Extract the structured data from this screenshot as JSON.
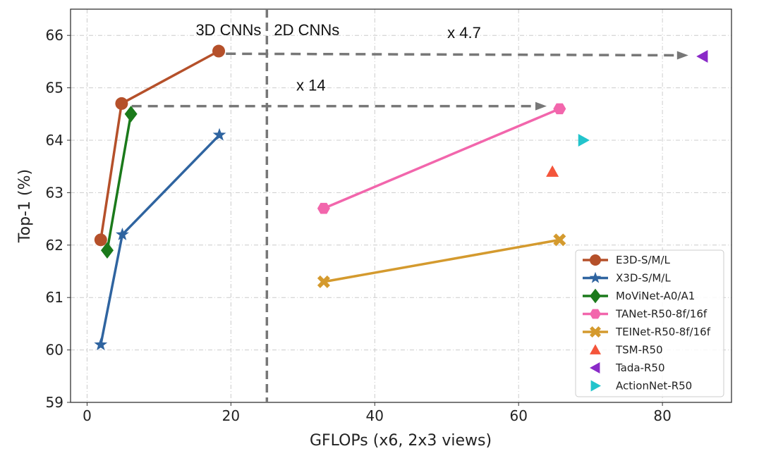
{
  "chart_data": {
    "type": "line",
    "title": "",
    "xlabel": "GFLOPs (x6, 2x3 views)",
    "ylabel": "Top-1 (%)",
    "xlim": [
      -2.3,
      89.6
    ],
    "ylim": [
      59,
      66.5
    ],
    "xticks": [
      0,
      20,
      40,
      60,
      80
    ],
    "yticks": [
      59,
      60,
      61,
      62,
      63,
      64,
      65,
      66
    ],
    "grid": true,
    "legend_position": "bottom-right",
    "divider": {
      "x": 25,
      "left_label": "3D CNNs",
      "right_label": "2D CNNs"
    },
    "arrows": [
      {
        "from": [
          19.3,
          65.65
        ],
        "to": [
          83.6,
          65.62
        ],
        "label": "x 4.7"
      },
      {
        "from": [
          6.2,
          64.65
        ],
        "to": [
          63.9,
          64.65
        ],
        "label": "x 14"
      }
    ],
    "series": [
      {
        "name": "E3D-S/M/L",
        "color": "#b5502a",
        "marker": "circle",
        "x": [
          1.9,
          4.8,
          18.3
        ],
        "y": [
          62.1,
          64.7,
          65.7
        ]
      },
      {
        "name": "X3D-S/M/L",
        "color": "#2f64a0",
        "marker": "star",
        "x": [
          1.9,
          4.9,
          18.4
        ],
        "y": [
          60.1,
          62.2,
          64.1
        ]
      },
      {
        "name": "MoViNet-A0/A1",
        "color": "#1b7a1b",
        "marker": "diamond",
        "x": [
          2.8,
          6.1
        ],
        "y": [
          61.9,
          64.5
        ]
      },
      {
        "name": "TANet-R50-8f/16f",
        "color": "#f266ac",
        "marker": "hexagon",
        "x": [
          32.9,
          65.7
        ],
        "y": [
          62.7,
          64.6
        ]
      },
      {
        "name": "TEINet-R50-8f/16f",
        "color": "#d49a2e",
        "marker": "x-filled",
        "x": [
          32.9,
          65.7
        ],
        "y": [
          61.3,
          62.1
        ]
      },
      {
        "name": "TSM-R50",
        "color": "#f4553b",
        "marker": "triangle-up",
        "x": [
          64.7
        ],
        "y": [
          63.4
        ]
      },
      {
        "name": "Tada-R50",
        "color": "#8a2ac8",
        "marker": "triangle-left",
        "x": [
          85.6
        ],
        "y": [
          65.6
        ]
      },
      {
        "name": "ActionNet-R50",
        "color": "#22c4cc",
        "marker": "triangle-right",
        "x": [
          69.0
        ],
        "y": [
          64.0
        ]
      }
    ]
  }
}
